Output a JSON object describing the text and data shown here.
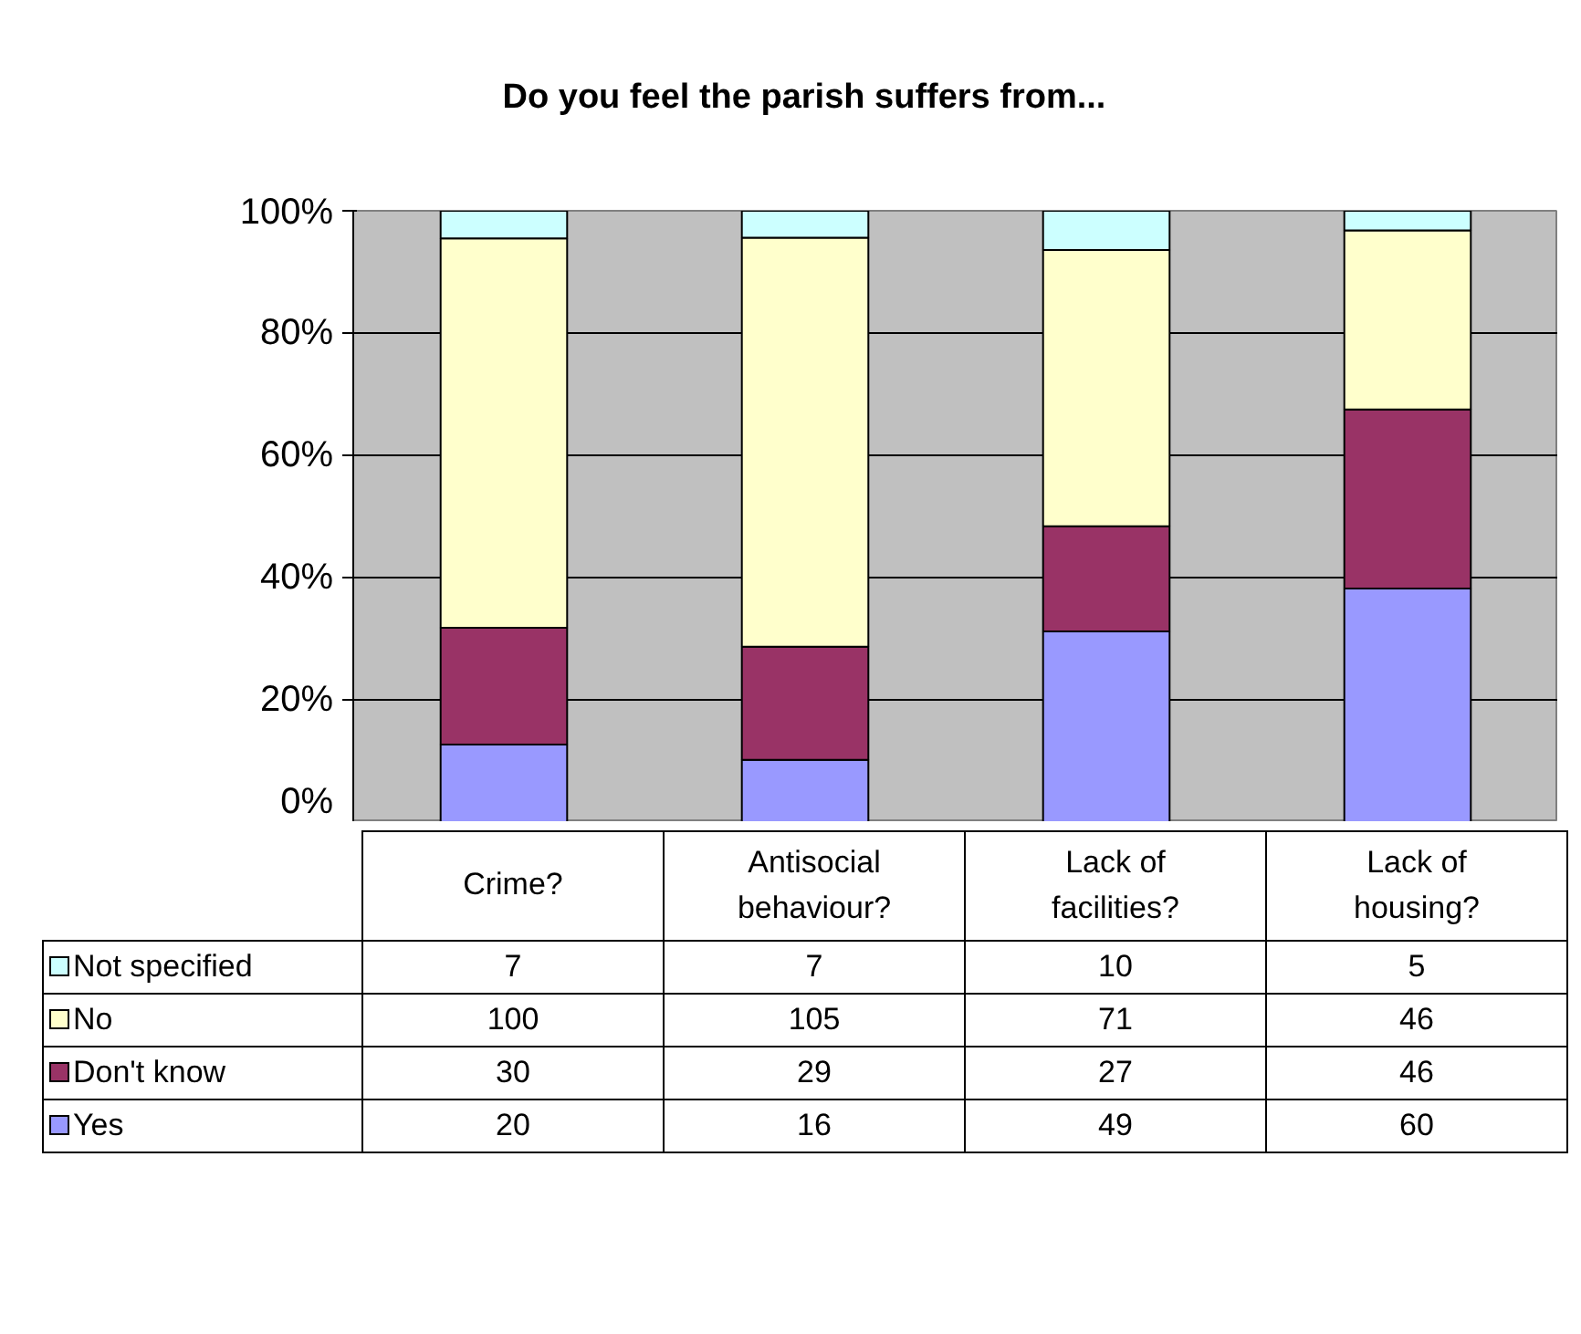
{
  "chart_data": {
    "type": "bar",
    "stacked": true,
    "title": "Do you feel the parish suffers from...",
    "categories": [
      "Crime?",
      "Antisocial behaviour?",
      "Lack of facilities?",
      "Lack of housing?"
    ],
    "series": [
      {
        "name": "Yes",
        "color": "#9999ff",
        "values": [
          12.7,
          10.2,
          31.2,
          38.2
        ]
      },
      {
        "name": "Don't know",
        "color": "#993366",
        "values": [
          19.1,
          18.5,
          17.2,
          29.3
        ]
      },
      {
        "name": "No",
        "color": "#ffffcc",
        "values": [
          63.7,
          66.9,
          45.2,
          29.3
        ]
      },
      {
        "name": "Not specified",
        "color": "#ccffff",
        "values": [
          4.5,
          4.4,
          6.4,
          3.2
        ]
      }
    ],
    "annotations": [
      "7",
      "7",
      "10",
      "5",
      "100",
      "105",
      "71",
      "46",
      "30",
      "29",
      "27",
      "46",
      "20",
      "16",
      "49",
      "60"
    ],
    "ylim": [
      0,
      100
    ],
    "yticks": [
      {
        "value": 0,
        "label": "0%"
      },
      {
        "value": 20,
        "label": "20%"
      },
      {
        "value": 40,
        "label": "40%"
      },
      {
        "value": 60,
        "label": "60%"
      },
      {
        "value": 80,
        "label": "80%"
      },
      {
        "value": 100,
        "label": "100%"
      }
    ],
    "grid": "y",
    "legend": "bottom"
  }
}
